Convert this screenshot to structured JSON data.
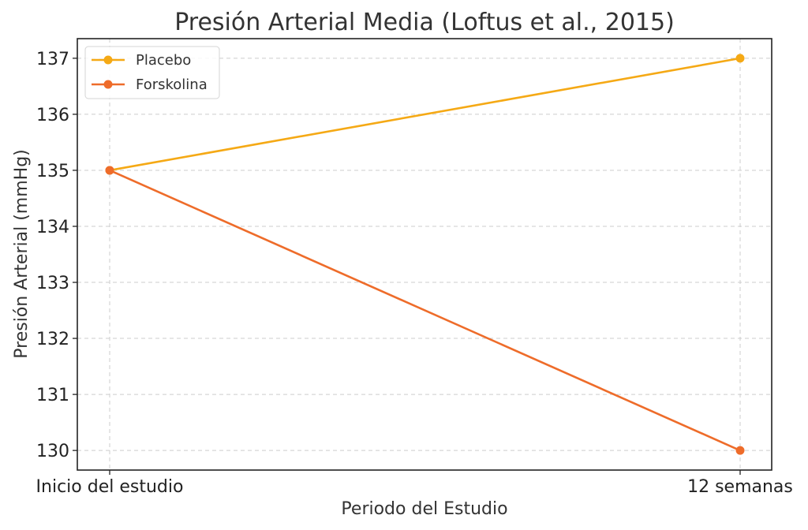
{
  "chart_data": {
    "type": "line",
    "title": "Presión Arterial Media (Loftus et al., 2015)",
    "xlabel": "Periodo del Estudio",
    "ylabel": "Presión Arterial (mmHg)",
    "categories": [
      "Inicio del estudio",
      "12 semanas"
    ],
    "ylim": [
      129.65,
      137.35
    ],
    "yticks": [
      130,
      131,
      132,
      133,
      134,
      135,
      136,
      137
    ],
    "grid": true,
    "legend": "top-left",
    "series": [
      {
        "name": "Placebo",
        "values": [
          135,
          137
        ],
        "color": "#F5A915"
      },
      {
        "name": "Forskolina",
        "values": [
          135,
          130
        ],
        "color": "#EE6C2A"
      }
    ]
  }
}
